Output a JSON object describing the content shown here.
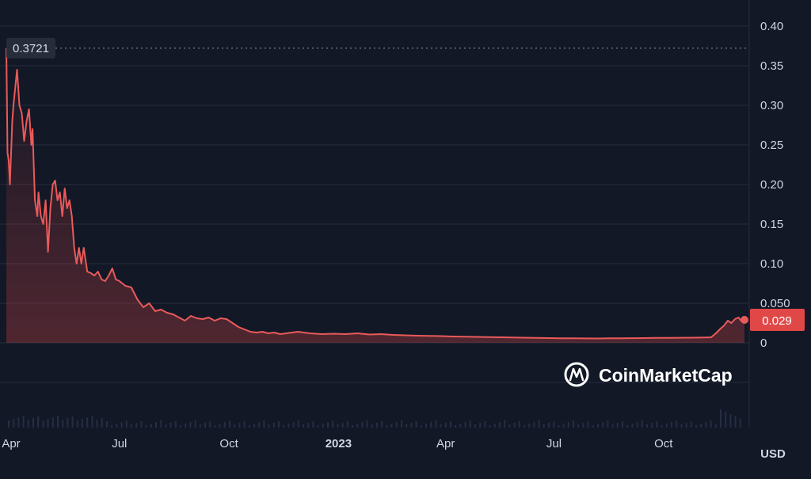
{
  "chart_data": {
    "type": "area",
    "title": "",
    "xlabel": "",
    "ylabel": "",
    "currency_label": "USD",
    "watermark": "CoinMarketCap",
    "x_range": [
      "2022-03-28",
      "2023-12-08"
    ],
    "ylim": [
      0,
      0.42
    ],
    "y_ticks": [
      {
        "value": 0.4,
        "label": "0.40"
      },
      {
        "value": 0.35,
        "label": "0.35"
      },
      {
        "value": 0.3,
        "label": "0.30"
      },
      {
        "value": 0.25,
        "label": "0.25"
      },
      {
        "value": 0.2,
        "label": "0.20"
      },
      {
        "value": 0.15,
        "label": "0.15"
      },
      {
        "value": 0.1,
        "label": "0.10"
      },
      {
        "value": 0.05,
        "label": "0.050"
      },
      {
        "value": 0,
        "label": "0"
      }
    ],
    "x_ticks": [
      {
        "date": "2022-04-01",
        "label": "Apr",
        "bold": false
      },
      {
        "date": "2022-07-01",
        "label": "Jul",
        "bold": false
      },
      {
        "date": "2022-10-01",
        "label": "Oct",
        "bold": false
      },
      {
        "date": "2023-01-01",
        "label": "2023",
        "bold": true
      },
      {
        "date": "2023-04-01",
        "label": "Apr",
        "bold": false
      },
      {
        "date": "2023-07-01",
        "label": "Jul",
        "bold": false
      },
      {
        "date": "2023-10-01",
        "label": "Oct",
        "bold": false
      }
    ],
    "high_marker": {
      "value": 0.3721,
      "label": "0.3721"
    },
    "current": {
      "value": 0.029,
      "label": "0.029"
    },
    "colors": {
      "background": "#121826",
      "line": "#ea5a5a",
      "grid": "#262d3c",
      "tick_text": "#cfd6e4",
      "badge_bg": "#e04848",
      "high_badge_bg": "#262c39",
      "volume": "#2e3850"
    },
    "series": [
      {
        "x": [
          "2022-03-28",
          "2022-03-29",
          "2022-03-30",
          "2022-03-31",
          "2022-04-02",
          "2022-04-03",
          "2022-04-05",
          "2022-04-06",
          "2022-04-08",
          "2022-04-10",
          "2022-04-12",
          "2022-04-14",
          "2022-04-16",
          "2022-04-18",
          "2022-04-19",
          "2022-04-21",
          "2022-04-23",
          "2022-04-24",
          "2022-04-26",
          "2022-04-28",
          "2022-04-30",
          "2022-05-02",
          "2022-05-04",
          "2022-05-06",
          "2022-05-08",
          "2022-05-10",
          "2022-05-12",
          "2022-05-14",
          "2022-05-16",
          "2022-05-18",
          "2022-05-20",
          "2022-05-22",
          "2022-05-24",
          "2022-05-26",
          "2022-05-28",
          "2022-05-30",
          "2022-06-01",
          "2022-06-04",
          "2022-06-07",
          "2022-06-10",
          "2022-06-13",
          "2022-06-16",
          "2022-06-19",
          "2022-06-22",
          "2022-06-25",
          "2022-06-28",
          "2022-07-01",
          "2022-07-06",
          "2022-07-11",
          "2022-07-16",
          "2022-07-21",
          "2022-07-26",
          "2022-07-31",
          "2022-08-05",
          "2022-08-10",
          "2022-08-15",
          "2022-08-20",
          "2022-08-25",
          "2022-08-30",
          "2022-09-04",
          "2022-09-09",
          "2022-09-14",
          "2022-09-19",
          "2022-09-24",
          "2022-09-29",
          "2022-10-04",
          "2022-10-09",
          "2022-10-14",
          "2022-10-19",
          "2022-10-24",
          "2022-10-29",
          "2022-11-03",
          "2022-11-08",
          "2022-11-13",
          "2022-11-18",
          "2022-11-23",
          "2022-11-28",
          "2022-12-03",
          "2022-12-08",
          "2022-12-18",
          "2022-12-28",
          "2023-01-07",
          "2023-01-17",
          "2023-01-27",
          "2023-02-06",
          "2023-02-16",
          "2023-02-26",
          "2023-03-08",
          "2023-03-18",
          "2023-03-28",
          "2023-04-07",
          "2023-04-17",
          "2023-04-27",
          "2023-05-07",
          "2023-05-17",
          "2023-05-27",
          "2023-06-06",
          "2023-06-16",
          "2023-06-26",
          "2023-07-06",
          "2023-07-16",
          "2023-07-26",
          "2023-08-05",
          "2023-08-15",
          "2023-08-25",
          "2023-09-04",
          "2023-09-14",
          "2023-09-24",
          "2023-10-04",
          "2023-10-14",
          "2023-10-24",
          "2023-11-01",
          "2023-11-06",
          "2023-11-10",
          "2023-11-14",
          "2023-11-18",
          "2023-11-21",
          "2023-11-24",
          "2023-11-27",
          "2023-11-30",
          "2023-12-03",
          "2023-12-05",
          "2023-12-07",
          "2023-12-08"
        ],
        "y": [
          0.3721,
          0.24,
          0.23,
          0.2,
          0.28,
          0.3,
          0.33,
          0.345,
          0.3,
          0.29,
          0.255,
          0.28,
          0.295,
          0.25,
          0.27,
          0.18,
          0.16,
          0.19,
          0.16,
          0.15,
          0.18,
          0.115,
          0.17,
          0.2,
          0.205,
          0.18,
          0.19,
          0.16,
          0.195,
          0.17,
          0.18,
          0.16,
          0.12,
          0.1,
          0.12,
          0.1,
          0.12,
          0.09,
          0.088,
          0.085,
          0.09,
          0.08,
          0.078,
          0.085,
          0.094,
          0.08,
          0.078,
          0.072,
          0.07,
          0.055,
          0.045,
          0.05,
          0.04,
          0.042,
          0.038,
          0.036,
          0.032,
          0.028,
          0.034,
          0.031,
          0.03,
          0.032,
          0.028,
          0.031,
          0.03,
          0.025,
          0.02,
          0.017,
          0.014,
          0.013,
          0.014,
          0.012,
          0.013,
          0.011,
          0.012,
          0.013,
          0.014,
          0.013,
          0.012,
          0.011,
          0.0115,
          0.011,
          0.012,
          0.0105,
          0.011,
          0.01,
          0.0095,
          0.009,
          0.0088,
          0.0085,
          0.008,
          0.0078,
          0.0075,
          0.0072,
          0.007,
          0.0068,
          0.0065,
          0.0063,
          0.006,
          0.0058,
          0.0057,
          0.0056,
          0.0055,
          0.0057,
          0.0058,
          0.0059,
          0.006,
          0.0062,
          0.0063,
          0.0064,
          0.0065,
          0.0066,
          0.0068,
          0.007,
          0.012,
          0.018,
          0.022,
          0.028,
          0.025,
          0.03,
          0.032,
          0.028,
          0.031,
          0.029
        ]
      }
    ]
  }
}
